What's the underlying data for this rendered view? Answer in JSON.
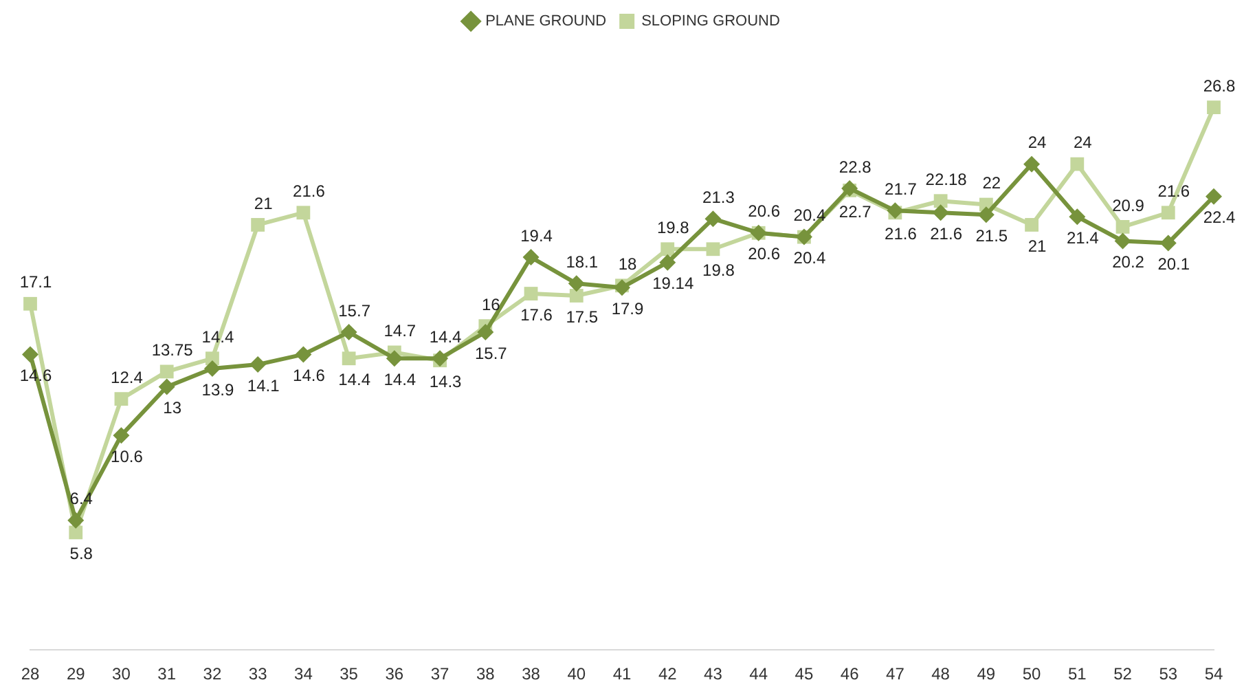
{
  "chart_data": {
    "type": "line",
    "categories": [
      "28",
      "29",
      "30",
      "31",
      "32",
      "33",
      "34",
      "35",
      "36",
      "37",
      "38",
      "38",
      "40",
      "41",
      "42",
      "43",
      "44",
      "45",
      "46",
      "47",
      "48",
      "49",
      "50",
      "51",
      "52",
      "53",
      "54"
    ],
    "series": [
      {
        "name": "PLANE GROUND",
        "color": "#77933c",
        "marker": "diamond",
        "values": [
          14.6,
          6.4,
          10.6,
          13,
          13.9,
          14.1,
          14.6,
          15.7,
          14.4,
          14.4,
          15.7,
          19.4,
          18.1,
          17.9,
          19.14,
          21.3,
          20.6,
          20.4,
          22.8,
          21.7,
          21.6,
          21.5,
          24,
          21.4,
          20.2,
          20.1,
          22.4
        ]
      },
      {
        "name": "SLOPING GROUND",
        "color": "#c3d69b",
        "marker": "square",
        "values": [
          17.1,
          5.8,
          12.4,
          13.75,
          14.4,
          21,
          21.6,
          14.4,
          14.7,
          14.3,
          16,
          17.6,
          17.5,
          18,
          19.8,
          19.8,
          20.6,
          20.4,
          22.7,
          21.6,
          22.18,
          22,
          21,
          24,
          20.9,
          21.6,
          26.8
        ]
      }
    ],
    "data_labels": true,
    "legend": "top",
    "grid": false,
    "tick_labels": "x"
  }
}
